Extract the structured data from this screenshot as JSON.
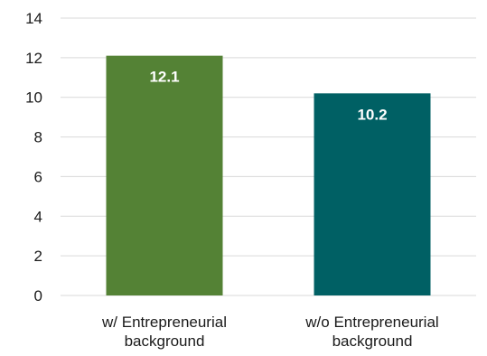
{
  "chart_data": {
    "type": "bar",
    "categories": [
      [
        "w/ Entrepreneurial",
        "background"
      ],
      [
        "w/o Entrepreneurial",
        "background"
      ]
    ],
    "values": [
      12.1,
      10.2
    ],
    "value_labels": [
      "12.1",
      "10.2"
    ],
    "bar_colors": [
      "#548235",
      "#006064"
    ],
    "ylim": [
      0,
      14
    ],
    "yticks": [
      0,
      2,
      4,
      6,
      8,
      10,
      12,
      14
    ],
    "ytick_labels": [
      "0",
      "2",
      "4",
      "6",
      "8",
      "10",
      "12",
      "14"
    ],
    "grid": true,
    "title": "",
    "xlabel": "",
    "ylabel": ""
  }
}
